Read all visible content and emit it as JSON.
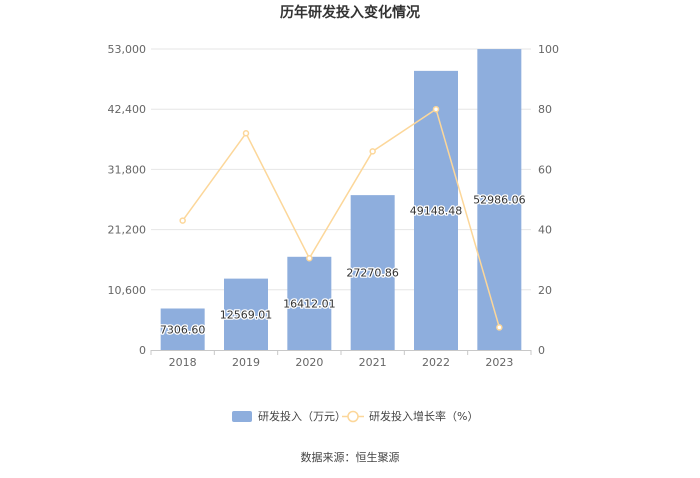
{
  "chart_data": {
    "type": "bar+line",
    "title": "历年研发投入变化情况",
    "categories": [
      "2018",
      "2019",
      "2020",
      "2021",
      "2022",
      "2023"
    ],
    "series": [
      {
        "name": "研发投入（万元）",
        "type": "bar",
        "axis": "left",
        "color": "#8eaedd",
        "values": [
          7306.6,
          12569.01,
          16412.01,
          27270.86,
          49148.48,
          52986.06
        ],
        "labels": [
          "7306.60",
          "12569.01",
          "16412.01",
          "27270.86",
          "49148.48",
          "52986.06"
        ]
      },
      {
        "name": "研发投入增长率（%）",
        "type": "line",
        "axis": "right",
        "color": "#fcd79a",
        "values": [
          43,
          72,
          30.5,
          66,
          80,
          7.5
        ]
      }
    ],
    "y_left": {
      "min": 0,
      "max": 53000,
      "ticks": [
        0,
        10600,
        21200,
        31800,
        42400,
        53000
      ],
      "tick_labels": [
        "0",
        "10,600",
        "21,200",
        "31,800",
        "42,400",
        "53,000"
      ]
    },
    "y_right": {
      "min": 0,
      "max": 100,
      "ticks": [
        0,
        20,
        40,
        60,
        80,
        100
      ],
      "tick_labels": [
        "0",
        "20",
        "40",
        "60",
        "80",
        "100"
      ]
    },
    "grid": true,
    "legend": "bottom-center",
    "source": "数据来源：恒生聚源"
  }
}
